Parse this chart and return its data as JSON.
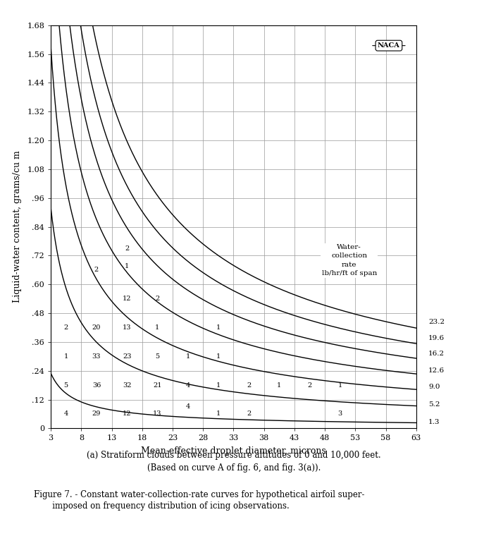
{
  "xlabel": "Mean-effective droplet diameter, microns",
  "ylabel": "Liquid-water content, grams/cu m",
  "xlim": [
    3,
    63
  ],
  "ylim": [
    0,
    1.68
  ],
  "xticks": [
    3,
    8,
    13,
    18,
    23,
    28,
    33,
    38,
    43,
    48,
    53,
    58,
    63
  ],
  "yticks": [
    0,
    0.12,
    0.24,
    0.36,
    0.48,
    0.6,
    0.72,
    0.84,
    0.96,
    1.08,
    1.2,
    1.32,
    1.44,
    1.56,
    1.68
  ],
  "ytick_labels": [
    "0",
    ".12",
    ".24",
    ".36",
    ".48",
    ".60",
    ".72",
    ".84",
    ".96",
    "1.08",
    "1.20",
    "1.32",
    "1.44",
    "1.56",
    "1.68"
  ],
  "curve_rates": [
    1.3,
    5.2,
    9.0,
    12.6,
    16.2,
    19.6,
    23.2
  ],
  "subtitle_a": "(a) Stratiform clouds between pressure altitudes of 0 and 10,000 feet.",
  "subtitle_b": "(Based on curve A of fig. 6, and fig. 3(a)).",
  "figure_caption_1": "Figure 7. - Constant water-collection-rate curves for hypothetical airfoil super-",
  "figure_caption_2": "       imposed on frequency distribution of icing observations.",
  "legend_lines": [
    "Water-",
    "collection",
    "rate",
    "lb/hr/ft of span"
  ],
  "freq_data": [
    [
      5.5,
      0.06,
      "4"
    ],
    [
      10.5,
      0.06,
      "29"
    ],
    [
      15.5,
      0.06,
      "12"
    ],
    [
      20.5,
      0.06,
      "13"
    ],
    [
      25.5,
      0.09,
      "4"
    ],
    [
      30.5,
      0.06,
      "1"
    ],
    [
      35.5,
      0.06,
      "2"
    ],
    [
      50.5,
      0.06,
      "3"
    ],
    [
      5.5,
      0.18,
      "5"
    ],
    [
      10.5,
      0.18,
      "36"
    ],
    [
      15.5,
      0.18,
      "32"
    ],
    [
      20.5,
      0.18,
      "21"
    ],
    [
      25.5,
      0.18,
      "4"
    ],
    [
      30.5,
      0.18,
      "1"
    ],
    [
      35.5,
      0.18,
      "2"
    ],
    [
      40.5,
      0.18,
      "1"
    ],
    [
      45.5,
      0.18,
      "2"
    ],
    [
      50.5,
      0.18,
      "1"
    ],
    [
      5.5,
      0.3,
      "1"
    ],
    [
      10.5,
      0.3,
      "33"
    ],
    [
      15.5,
      0.3,
      "23"
    ],
    [
      20.5,
      0.3,
      "5"
    ],
    [
      25.5,
      0.3,
      "1"
    ],
    [
      30.5,
      0.3,
      "1"
    ],
    [
      5.5,
      0.42,
      "2"
    ],
    [
      10.5,
      0.42,
      "20"
    ],
    [
      15.5,
      0.42,
      "13"
    ],
    [
      20.5,
      0.42,
      "1"
    ],
    [
      30.5,
      0.42,
      "1"
    ],
    [
      15.5,
      0.54,
      "12"
    ],
    [
      20.5,
      0.54,
      "2"
    ],
    [
      10.5,
      0.66,
      "2"
    ],
    [
      15.5,
      0.75,
      "2"
    ],
    [
      15.5,
      0.675,
      "1"
    ]
  ],
  "n_exp": 1.5,
  "A_const": 0.62,
  "background_color": "#ffffff",
  "line_color": "#000000",
  "grid_color": "#999999"
}
